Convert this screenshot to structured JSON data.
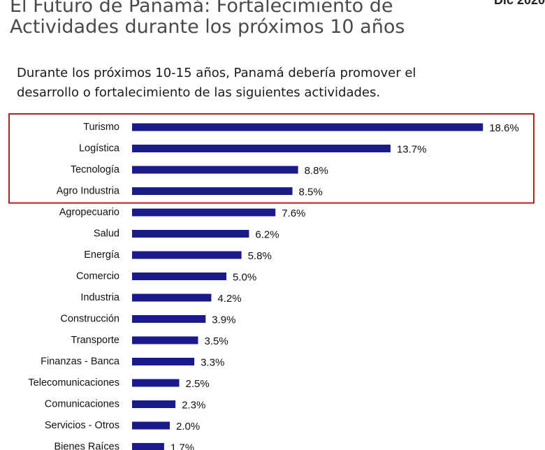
{
  "header": {
    "title_line1": "El Futuro de Panamá: Fortalecimiento de",
    "title_line2": "Actividades durante los próximos 10 años",
    "corner_text": "Dic 2020"
  },
  "subtitle": {
    "line1": "Durante los próximos 10-15 años, Panamá debería promover el",
    "line2": "desarrollo o fortalecimiento de las siguientes actividades."
  },
  "colors": {
    "bar": "#1a1a8c",
    "highlight_box": "#b22222"
  },
  "chart_data": {
    "type": "bar",
    "orientation": "horizontal",
    "categories": [
      "Turismo",
      "Logística",
      "Tecnología",
      "Agro Industria",
      "Agropecuario",
      "Salud",
      "Energía",
      "Comercio",
      "Industria",
      "Construcción",
      "Transporte",
      "Finanzas - Banca",
      "Telecomunicaciones",
      "Comunicaciones",
      "Servicios - Otros",
      "Bienes Raíces"
    ],
    "values": [
      18.6,
      13.7,
      8.8,
      8.5,
      7.6,
      6.2,
      5.8,
      5.0,
      4.2,
      3.9,
      3.5,
      3.3,
      2.5,
      2.3,
      2.0,
      1.7
    ],
    "value_labels": [
      "18.6%",
      "13.7%",
      "8.8%",
      "8.5%",
      "7.6%",
      "6.2%",
      "5.8%",
      "5.0%",
      "4.2%",
      "3.9%",
      "3.5%",
      "3.3%",
      "2.5%",
      "2.3%",
      "2.0%",
      "1.7%"
    ],
    "highlighted_categories": [
      "Turismo",
      "Logística",
      "Tecnología",
      "Agro Industria"
    ],
    "grid": false,
    "legend": "none"
  }
}
